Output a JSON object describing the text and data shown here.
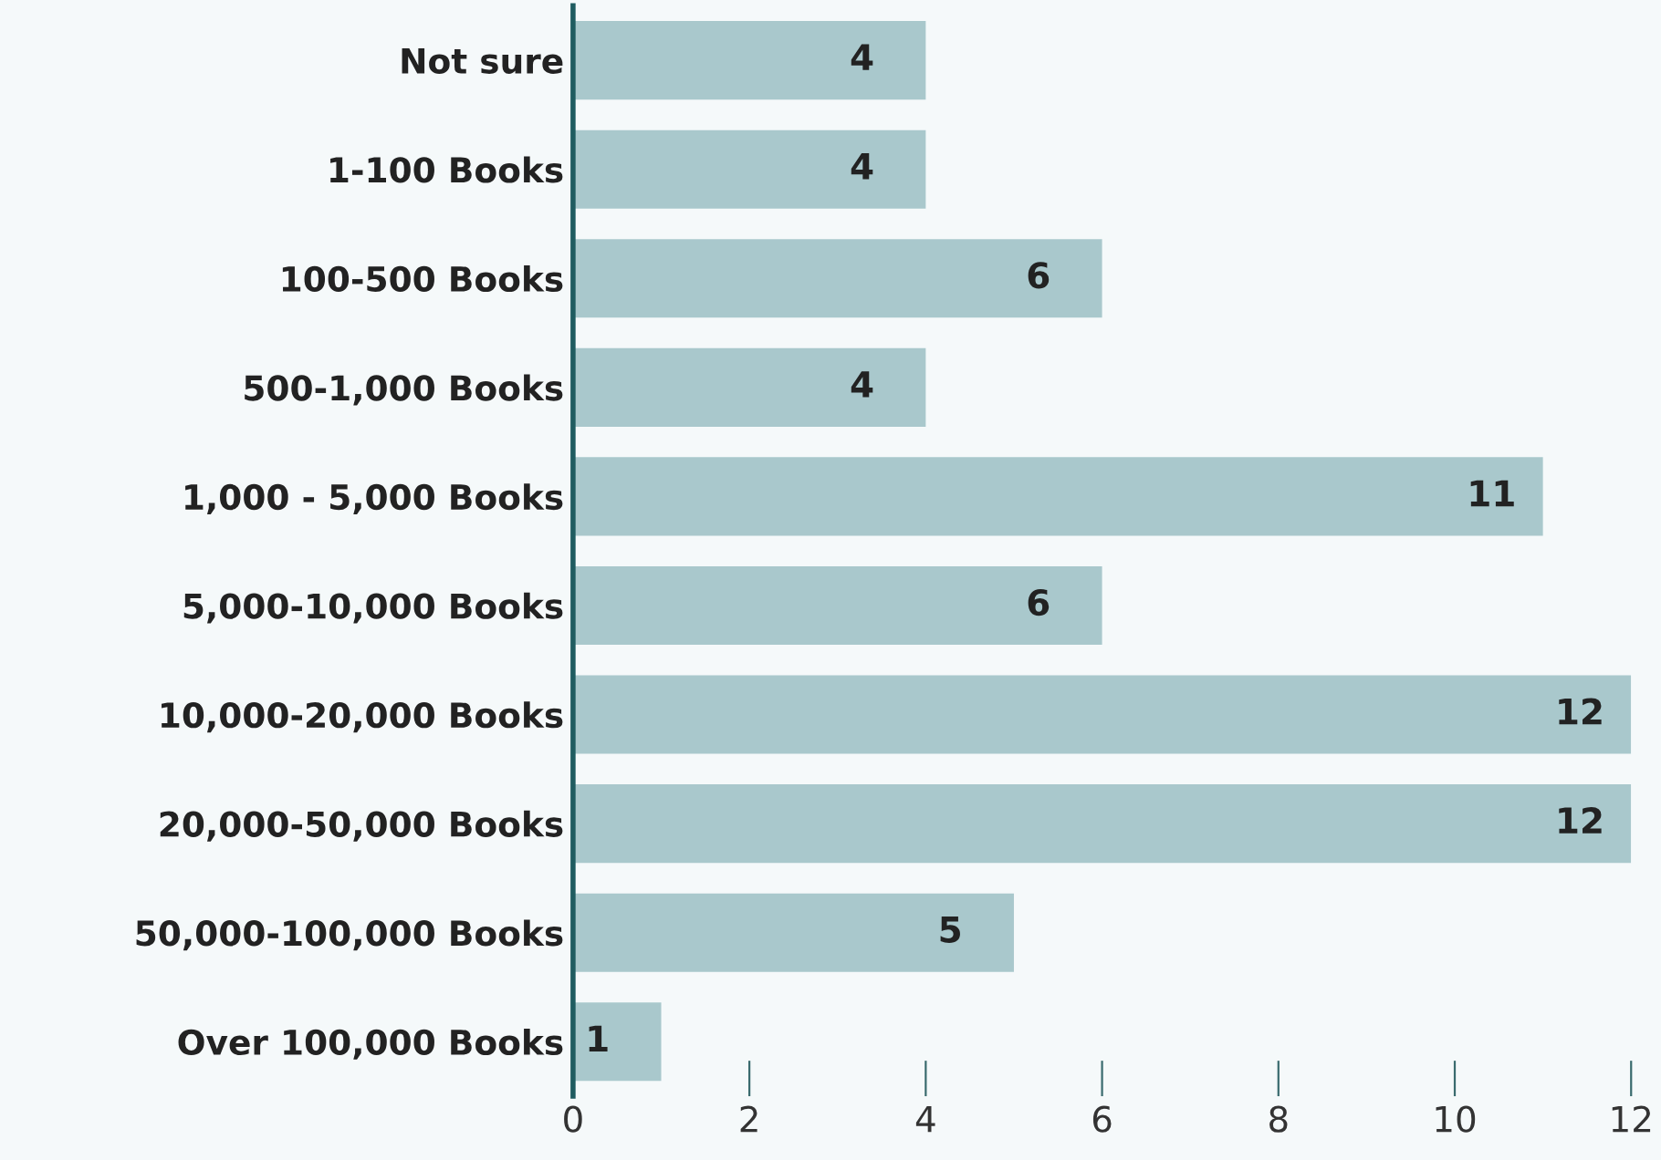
{
  "chart_data": {
    "type": "bar",
    "orientation": "horizontal",
    "categories": [
      "Not sure",
      "1-100 Books",
      "100-500 Books",
      "500-1,000 Books",
      "1,000 - 5,000 Books",
      "5,000-10,000 Books",
      "10,000-20,000 Books",
      "20,000-50,000 Books",
      "50,000-100,000 Books",
      "Over 100,000 Books"
    ],
    "values": [
      4,
      4,
      6,
      4,
      11,
      6,
      12,
      12,
      5,
      1
    ],
    "color": "#a9c8cc",
    "xlim": [
      0,
      12
    ],
    "xticks": [
      0,
      2,
      4,
      6,
      8,
      10,
      12
    ],
    "data_labels": true,
    "grid": false,
    "legend": false
  }
}
